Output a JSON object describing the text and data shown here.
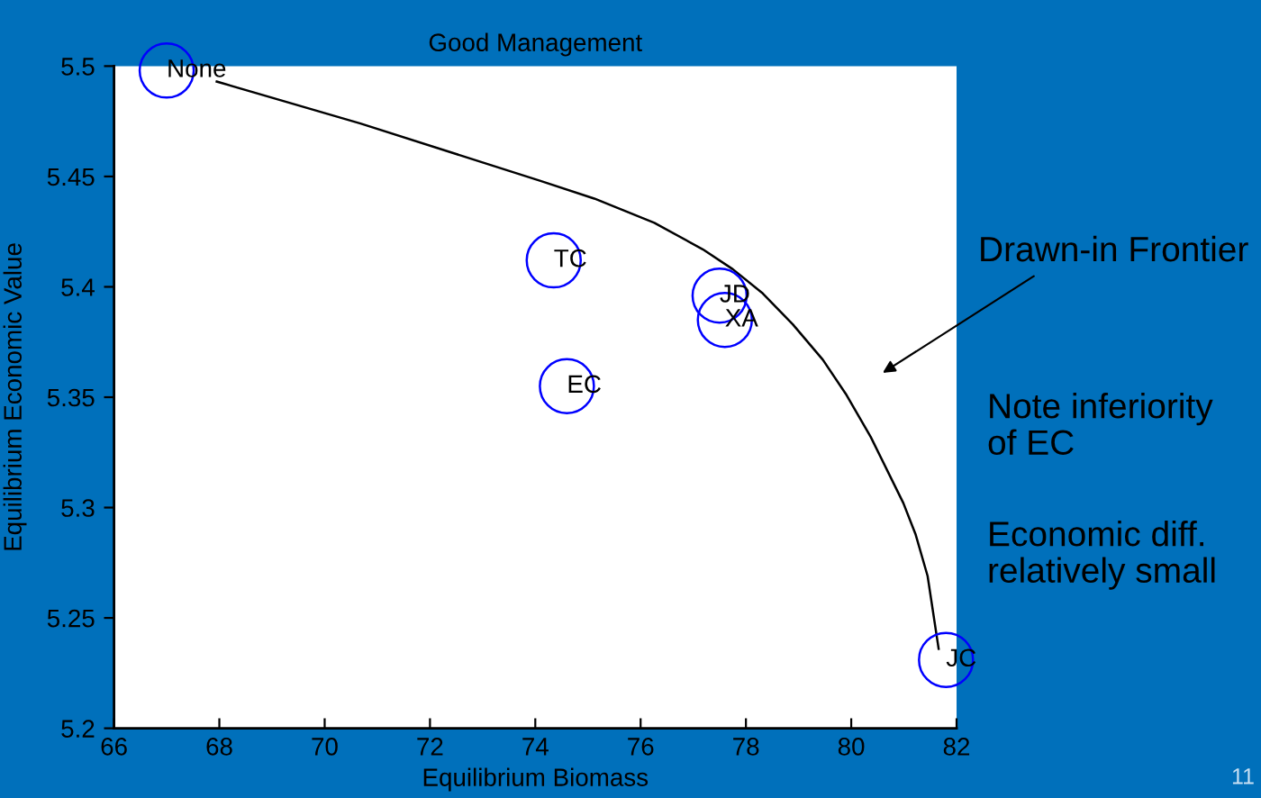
{
  "chart_data": {
    "type": "scatter",
    "title": "Good Management",
    "xlabel": "Equilibrium Biomass",
    "ylabel": "Equilibrium Economic Value",
    "xlim": [
      66,
      82
    ],
    "ylim": [
      5.2,
      5.5
    ],
    "xticks": [
      66,
      68,
      70,
      72,
      74,
      76,
      78,
      80,
      82
    ],
    "yticks": [
      5.2,
      5.25,
      5.3,
      5.35,
      5.4,
      5.45,
      5.5
    ],
    "grid": false,
    "series": [
      {
        "color": "#0000ff",
        "marker": "circle",
        "x": [
          67.0,
          74.35,
          77.5,
          77.6,
          74.6,
          81.8
        ],
        "values": [
          5.498,
          5.412,
          5.396,
          5.385,
          5.355,
          5.231
        ],
        "value_labels": [
          "None",
          "TC",
          "JD",
          "XA",
          "EC",
          "JC"
        ]
      },
      {
        "type": "line",
        "color": "#000000",
        "x": [
          67.95,
          70.68,
          74.1,
          75.12,
          76.26,
          77.18,
          77.75,
          78.32,
          78.89,
          79.46,
          79.91,
          80.37,
          80.99,
          81.22,
          81.45,
          81.66
        ],
        "values": [
          5.493,
          5.474,
          5.448,
          5.44,
          5.429,
          5.417,
          5.408,
          5.397,
          5.383,
          5.367,
          5.351,
          5.332,
          5.302,
          5.288,
          5.269,
          5.236
        ]
      }
    ],
    "annotations": [
      "Drawn-in Frontier",
      "Note inferiority of EC",
      "Economic diff. relatively small",
      "11"
    ]
  }
}
